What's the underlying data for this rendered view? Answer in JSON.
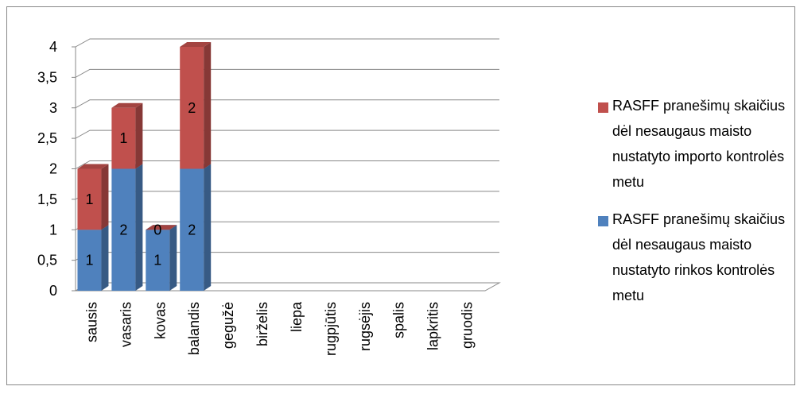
{
  "chart_data": {
    "type": "bar",
    "stacked": true,
    "categories": [
      "sausis",
      "vasaris",
      "kovas",
      "balandis",
      "gegužė",
      "birželis",
      "liepa",
      "rugpjūtis",
      "rugsėjis",
      "spalis",
      "lapkritis",
      "gruodis"
    ],
    "series": [
      {
        "name": "RASFF pranešimų skaičius dėl nesaugaus maisto nustatyto rinkos kontrolės metu",
        "color": "#4f81bd",
        "values": [
          1,
          2,
          1,
          2,
          null,
          null,
          null,
          null,
          null,
          null,
          null,
          null
        ]
      },
      {
        "name": "RASFF pranešimų skaičius dėl nesaugaus maisto nustatyto importo kontrolės metu",
        "color": "#c0504d",
        "values": [
          1,
          1,
          0,
          2,
          null,
          null,
          null,
          null,
          null,
          null,
          null,
          null
        ]
      }
    ],
    "ylim": [
      0,
      4
    ],
    "yticks": [
      0,
      {
        "value": 0.5,
        "label": "0,5"
      },
      1,
      {
        "value": 1.5,
        "label": "1,5"
      },
      2,
      {
        "value": 2.5,
        "label": "2,5"
      },
      3,
      {
        "value": 3.5,
        "label": "3,5"
      },
      4
    ],
    "grid": true,
    "legend": "right"
  }
}
